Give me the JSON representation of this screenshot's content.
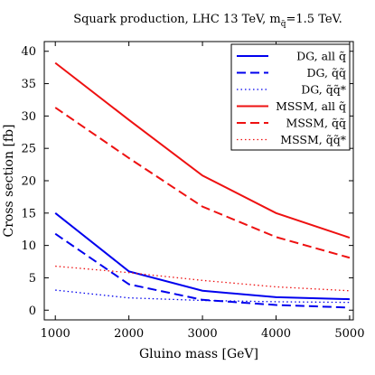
{
  "chart_data": {
    "type": "line",
    "title": "Squark production, LHC 13 TeV, m",
    "title_sub": "q̃",
    "title_rest": "=1.5 TeV.",
    "xlabel": "Gluino mass [GeV]",
    "ylabel": "Cross section [fb]",
    "xlim": [
      850,
      5050
    ],
    "ylim": [
      -1.5,
      41.5
    ],
    "x_ticks": [
      1000,
      2000,
      3000,
      4000,
      5000
    ],
    "y_ticks": [
      0,
      5,
      10,
      15,
      20,
      25,
      30,
      35,
      40
    ],
    "grid": false,
    "legend_position": "top-right",
    "x": [
      1000,
      2000,
      3000,
      4000,
      5000
    ],
    "series": [
      {
        "name": "DG, all q̃",
        "color": "#0000ee",
        "dash": "solid",
        "values": [
          15.0,
          6.0,
          3.0,
          2.0,
          1.7
        ]
      },
      {
        "name": "DG, q̃q̃",
        "color": "#0000ee",
        "dash": "dashed",
        "values": [
          11.8,
          4.0,
          1.6,
          0.8,
          0.4
        ]
      },
      {
        "name": "DG, q̃q̃*",
        "color": "#0000ee",
        "dash": "dotted",
        "values": [
          3.1,
          1.9,
          1.5,
          1.3,
          1.2
        ]
      },
      {
        "name": "MSSM, all q̃",
        "color": "#ee1111",
        "dash": "solid",
        "values": [
          38.2,
          29.4,
          20.8,
          15.0,
          11.2
        ]
      },
      {
        "name": "MSSM, q̃q̃",
        "color": "#ee1111",
        "dash": "dashed",
        "values": [
          31.3,
          23.5,
          16.0,
          11.3,
          8.1
        ]
      },
      {
        "name": "MSSM, q̃q̃*",
        "color": "#ee1111",
        "dash": "dotted",
        "values": [
          6.8,
          5.8,
          4.6,
          3.6,
          3.0
        ]
      }
    ]
  }
}
